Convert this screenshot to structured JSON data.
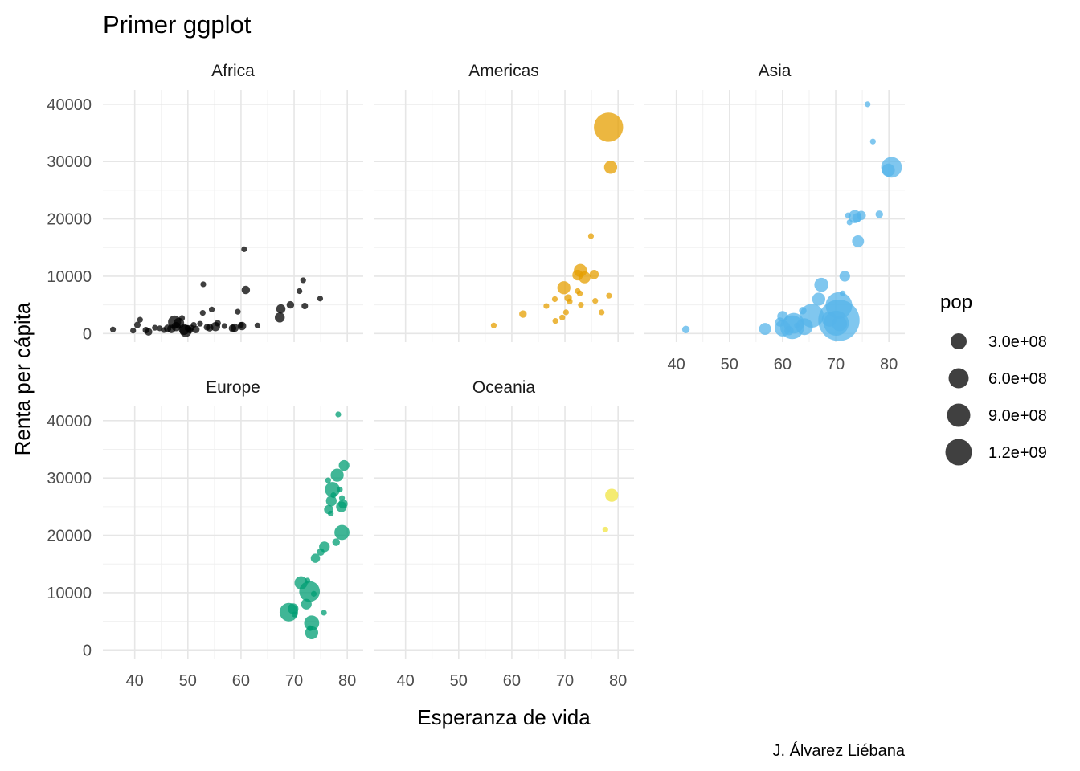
{
  "chart_data": {
    "type": "scatter",
    "title": "Primer ggplot",
    "xlabel": "Esperanza de vida",
    "ylabel": "Renta per cápita",
    "caption": "J. Álvarez Liébana",
    "xlim": [
      34,
      83
    ],
    "ylim": [
      -1500,
      42500
    ],
    "x_ticks": [
      40,
      50,
      60,
      70,
      80
    ],
    "y_ticks": [
      0,
      10000,
      20000,
      30000,
      40000
    ],
    "x_tick_labels": [
      "40",
      "50",
      "60",
      "70",
      "80"
    ],
    "y_tick_labels": [
      "0",
      "10000",
      "20000",
      "30000",
      "40000"
    ],
    "grid": true,
    "legend": {
      "title": "pop",
      "position": "right",
      "entries": [
        {
          "label": "3.0e+08",
          "value": 300000000
        },
        {
          "label": "6.0e+08",
          "value": 600000000
        },
        {
          "label": "9.0e+08",
          "value": 900000000
        },
        {
          "label": "1.2e+09",
          "value": 1200000000
        }
      ]
    },
    "facets": [
      {
        "name": "Africa",
        "color": "#000000",
        "points": [
          [
            35.9,
            700,
            5
          ],
          [
            39.7,
            500,
            8
          ],
          [
            40.5,
            1500,
            15
          ],
          [
            41.0,
            2400,
            12
          ],
          [
            42.1,
            600,
            15
          ],
          [
            42.6,
            300,
            20
          ],
          [
            43.8,
            1000,
            10
          ],
          [
            44.7,
            900,
            9
          ],
          [
            45.5,
            600,
            12
          ],
          [
            46.2,
            900,
            20
          ],
          [
            46.9,
            800,
            25
          ],
          [
            47.5,
            2000,
            60
          ],
          [
            47.8,
            1200,
            30
          ],
          [
            48.3,
            1800,
            40
          ],
          [
            48.9,
            2700,
            10
          ],
          [
            49.3,
            700,
            40
          ],
          [
            49.6,
            450,
            50
          ],
          [
            50.0,
            900,
            15
          ],
          [
            50.4,
            600,
            15
          ],
          [
            50.7,
            1000,
            10
          ],
          [
            51.1,
            1500,
            12
          ],
          [
            51.5,
            700,
            20
          ],
          [
            52.3,
            1700,
            10
          ],
          [
            52.9,
            8600,
            5
          ],
          [
            52.8,
            3600,
            10
          ],
          [
            53.6,
            1100,
            15
          ],
          [
            54.1,
            1000,
            20
          ],
          [
            54.5,
            4200,
            8
          ],
          [
            55.2,
            1200,
            30
          ],
          [
            55.6,
            1800,
            15
          ],
          [
            56.9,
            1300,
            5
          ],
          [
            58.4,
            900,
            20
          ],
          [
            59.4,
            3800,
            12
          ],
          [
            58.8,
            1000,
            25
          ],
          [
            60.0,
            1500,
            10
          ],
          [
            60.2,
            1300,
            25
          ],
          [
            60.6,
            14700,
            2
          ],
          [
            60.9,
            7600,
            25
          ],
          [
            63.1,
            1400,
            5
          ],
          [
            67.3,
            2800,
            35
          ],
          [
            67.5,
            4300,
            30
          ],
          [
            69.3,
            5000,
            20
          ],
          [
            71.0,
            7400,
            5
          ],
          [
            71.7,
            9300,
            8
          ],
          [
            72.0,
            4800,
            15
          ],
          [
            74.9,
            6100,
            4
          ]
        ]
      },
      {
        "name": "Americas",
        "color": "#E69F00",
        "points": [
          [
            56.6,
            1400,
            10
          ],
          [
            62.1,
            3400,
            20
          ],
          [
            66.5,
            4800,
            5
          ],
          [
            68.1,
            6000,
            8
          ],
          [
            68.2,
            2200,
            10
          ],
          [
            69.5,
            2800,
            7
          ],
          [
            69.8,
            8000,
            60
          ],
          [
            70.2,
            3700,
            10
          ],
          [
            70.6,
            6200,
            20
          ],
          [
            70.9,
            5600,
            5
          ],
          [
            72.4,
            10200,
            40
          ],
          [
            72.4,
            7400,
            10
          ],
          [
            72.8,
            7000,
            5
          ],
          [
            72.9,
            11000,
            60
          ],
          [
            73.0,
            5000,
            5
          ],
          [
            73.7,
            9800,
            50
          ],
          [
            74.9,
            17000,
            10
          ],
          [
            75.5,
            10300,
            30
          ],
          [
            75.7,
            5700,
            10
          ],
          [
            76.9,
            3700,
            12
          ],
          [
            78.3,
            6600,
            10
          ],
          [
            78.6,
            29000,
            60
          ],
          [
            78.2,
            36000,
            300
          ]
        ]
      },
      {
        "name": "Asia",
        "color": "#56B4E9",
        "points": [
          [
            41.8,
            700,
            20
          ],
          [
            56.7,
            800,
            50
          ],
          [
            59.5,
            2000,
            30
          ],
          [
            60.0,
            3000,
            40
          ],
          [
            60.0,
            900,
            90
          ],
          [
            61.2,
            500,
            30
          ],
          [
            61.8,
            1100,
            200
          ],
          [
            62.1,
            1800,
            150
          ],
          [
            62.7,
            1400,
            10
          ],
          [
            63.8,
            4000,
            20
          ],
          [
            64.1,
            1200,
            100
          ],
          [
            65.5,
            3100,
            200
          ],
          [
            66.8,
            6000,
            60
          ],
          [
            67.3,
            8500,
            70
          ],
          [
            68.8,
            2500,
            80
          ],
          [
            70.1,
            1800,
            220
          ],
          [
            70.6,
            4900,
            250
          ],
          [
            70.6,
            2300,
            600
          ],
          [
            70.7,
            1700,
            80
          ],
          [
            71.3,
            7000,
            10
          ],
          [
            71.7,
            10000,
            40
          ],
          [
            72.3,
            20600,
            5
          ],
          [
            72.6,
            19400,
            10
          ],
          [
            73.6,
            20400,
            60
          ],
          [
            74.0,
            20200,
            30
          ],
          [
            74.2,
            16100,
            50
          ],
          [
            74.8,
            20600,
            30
          ],
          [
            76.0,
            40000,
            5
          ],
          [
            77.0,
            33500,
            5
          ],
          [
            78.2,
            20800,
            20
          ],
          [
            79.9,
            28500,
            60
          ],
          [
            80.5,
            29000,
            150
          ]
        ]
      },
      {
        "name": "Europe",
        "color": "#009E73",
        "points": [
          [
            69.0,
            6600,
            120
          ],
          [
            69.8,
            7200,
            40
          ],
          [
            70.1,
            6200,
            5
          ],
          [
            71.3,
            11700,
            60
          ],
          [
            72.3,
            8000,
            40
          ],
          [
            72.5,
            12100,
            5
          ],
          [
            72.9,
            10200,
            150
          ],
          [
            73.0,
            3800,
            10
          ],
          [
            73.3,
            3000,
            60
          ],
          [
            73.3,
            4700,
            80
          ],
          [
            73.7,
            9800,
            5
          ],
          [
            74.0,
            16000,
            30
          ],
          [
            75.0,
            17100,
            20
          ],
          [
            75.6,
            6500,
            5
          ],
          [
            75.7,
            18000,
            40
          ],
          [
            76.4,
            29600,
            5
          ],
          [
            76.5,
            24500,
            30
          ],
          [
            76.9,
            23800,
            10
          ],
          [
            77.0,
            26000,
            40
          ],
          [
            77.2,
            28000,
            80
          ],
          [
            77.4,
            27000,
            5
          ],
          [
            77.9,
            18800,
            20
          ],
          [
            78.1,
            30500,
            60
          ],
          [
            78.3,
            41100,
            5
          ],
          [
            78.6,
            28000,
            5
          ],
          [
            79.0,
            20500,
            80
          ],
          [
            78.9,
            25000,
            40
          ],
          [
            79.0,
            26500,
            5
          ],
          [
            79.4,
            32200,
            40
          ],
          [
            79.2,
            25500,
            30
          ]
        ]
      },
      {
        "name": "Oceania",
        "color": "#F0E442",
        "points": [
          [
            77.6,
            21000,
            10
          ],
          [
            78.8,
            27000,
            60
          ]
        ]
      }
    ]
  }
}
